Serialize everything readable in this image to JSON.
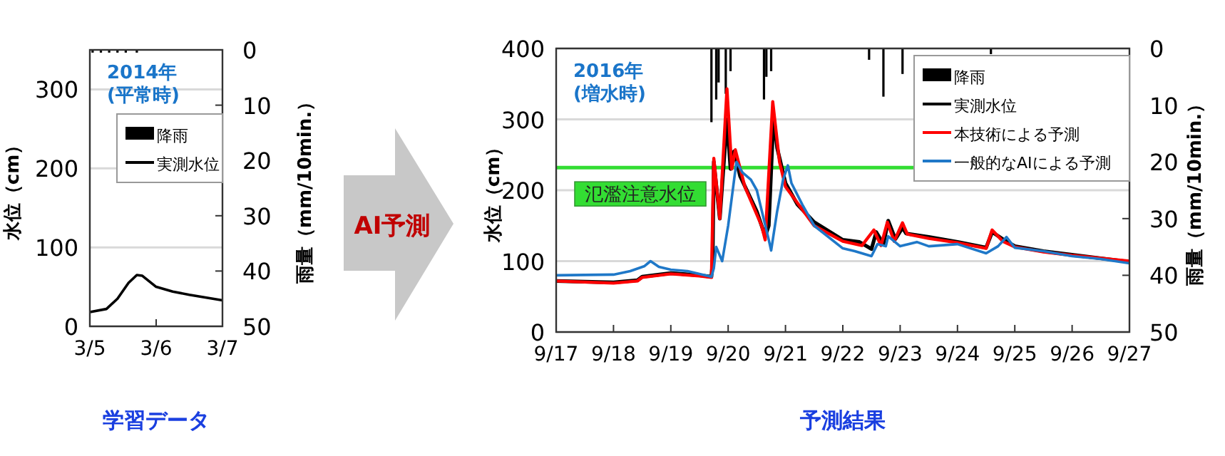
{
  "chart_data": [
    {
      "type": "line",
      "ylabel": "水位（cm）",
      "y2label": "雨量（mm/10min.）",
      "xlim": [
        "--03-05",
        "--03-07"
      ],
      "xticks": [
        {
          "value": "--03-05",
          "label": "3/5"
        },
        {
          "value": "--03-06",
          "label": "3/6"
        },
        {
          "value": "--03-07",
          "label": "3/7"
        }
      ],
      "ylim": [
        0,
        350
      ],
      "yticks": [
        0,
        100,
        200,
        300
      ],
      "y2lim": [
        50,
        0
      ],
      "y2ticks": [
        0,
        10,
        20,
        30,
        40,
        50
      ],
      "grid": "y",
      "legend": "top right",
      "annotations": [
        "2014年\n(平常時)",
        "学習データ"
      ],
      "series": [
        {
          "name": "降雨",
          "type": "bar",
          "axis": "y2",
          "color": "#000000",
          "x": [
            "--03-05T01:00",
            "--03-05T04:00",
            "--03-05T07:00",
            "--03-05T10:00",
            "--03-05T13:00",
            "--03-05T17:00"
          ],
          "values": [
            0.5,
            0.5,
            0.5,
            0.5,
            0.5,
            0.5
          ]
        },
        {
          "name": "実測水位",
          "type": "line",
          "color": "#000000",
          "x": [
            "--03-05T00:00",
            "--03-05T06:00",
            "--03-05T10:00",
            "--03-05T14:00",
            "--03-05T17:00",
            "--03-05T19:00",
            "--03-06T00:00",
            "--03-06T06:00",
            "--03-06T12:00",
            "--03-07T00:00"
          ],
          "values": [
            18,
            22,
            35,
            55,
            65,
            64,
            50,
            44,
            40,
            33
          ]
        }
      ]
    },
    {
      "type": "other",
      "annotations": [
        "AI予測"
      ]
    },
    {
      "type": "line",
      "ylabel": "水位（cm）",
      "y2label": "雨量（mm/10min.）",
      "xlim": [
        "--09-17",
        "--09-27"
      ],
      "xticks": [
        {
          "value": "--09-17",
          "label": "9/17"
        },
        {
          "value": "--09-18",
          "label": "9/18"
        },
        {
          "value": "--09-19",
          "label": "9/19"
        },
        {
          "value": "--09-20",
          "label": "9/20"
        },
        {
          "value": "--09-21",
          "label": "9/21"
        },
        {
          "value": "--09-22",
          "label": "9/22"
        },
        {
          "value": "--09-23",
          "label": "9/23"
        },
        {
          "value": "--09-24",
          "label": "9/24"
        },
        {
          "value": "--09-25",
          "label": "9/25"
        },
        {
          "value": "--09-26",
          "label": "9/26"
        },
        {
          "value": "--09-27",
          "label": "9/27"
        }
      ],
      "ylim": [
        0,
        400
      ],
      "yticks": [
        0,
        100,
        200,
        300,
        400
      ],
      "y2lim": [
        50,
        0
      ],
      "y2ticks": [
        0,
        10,
        20,
        30,
        40,
        50
      ],
      "grid": "y",
      "legend": "top right",
      "annotations": [
        "2016年\n(増水時)",
        "予測結果"
      ],
      "ref_lines": [
        {
          "axis": "y",
          "value": 232,
          "label": "氾濫注意水位",
          "color": "#33dd33"
        }
      ],
      "series": [
        {
          "name": "降雨",
          "type": "bar",
          "axis": "y2",
          "color": "#000000",
          "x": [
            "--09-19T17:00",
            "--09-19T19:00",
            "--09-19T20:00",
            "--09-19T23:00",
            "--09-20T01:00",
            "--09-20T15:00",
            "--09-20T16:00",
            "--09-20T18:00",
            "--09-22T11:00",
            "--09-22T17:00",
            "--09-23T01:00",
            "--09-24T14:00"
          ],
          "values": [
            13,
            9,
            6,
            8,
            4,
            9,
            5,
            4,
            2,
            8.5,
            4.5,
            1
          ]
        },
        {
          "name": "実測水位",
          "type": "line",
          "color": "#000000",
          "x": [
            "--09-17T00:00",
            "--09-18T00:00",
            "--09-18T10:00",
            "--09-18T12:00",
            "--09-19T00:00",
            "--09-19T12:00",
            "--09-19T17:00",
            "--09-19T17:30",
            "--09-19T18:00",
            "--09-19T20:30",
            "--09-19T23:30",
            "--09-20T01:00",
            "--09-20T02:30",
            "--09-20T05:00",
            "--09-20T12:00",
            "--09-20T15:30",
            "--09-20T17:00",
            "--09-20T19:00",
            "--09-20T20:30",
            "--09-21T00:00",
            "--09-21T05:00",
            "--09-21T12:00",
            "--09-22T00:00",
            "--09-22T07:00",
            "--09-22T12:00",
            "--09-22T14:00",
            "--09-22T17:00",
            "--09-22T19:00",
            "--09-22T22:00",
            "--09-23T01:00",
            "--09-23T02:30",
            "--09-23T12:00",
            "--09-24T00:00",
            "--09-24T12:00",
            "--09-24T14:30",
            "--09-24T19:00",
            "--09-25T00:00",
            "--09-25T12:00",
            "--09-26T00:00",
            "--09-26T12:00",
            "--09-27T00:00"
          ],
          "values": [
            72,
            70,
            73,
            78,
            83,
            80,
            78,
            100,
            240,
            160,
            300,
            230,
            255,
            220,
            170,
            135,
            150,
            305,
            260,
            210,
            180,
            155,
            130,
            127,
            117,
            141,
            124,
            157,
            131,
            147,
            139,
            134,
            127,
            119,
            141,
            131,
            121,
            114,
            109,
            104,
            99
          ]
        },
        {
          "name": "本技術による予測",
          "type": "line",
          "color": "#ff0000",
          "x": [
            "--09-17T00:00",
            "--09-18T00:00",
            "--09-18T10:00",
            "--09-18T12:00",
            "--09-19T00:00",
            "--09-19T12:00",
            "--09-19T17:00",
            "--09-19T18:00",
            "--09-19T20:30",
            "--09-19T23:30",
            "--09-20T01:30",
            "--09-20T03:00",
            "--09-20T07:00",
            "--09-20T14:00",
            "--09-20T15:30",
            "--09-20T18:40",
            "--09-20T21:30",
            "--09-21T00:00",
            "--09-21T12:00",
            "--09-22T00:00",
            "--09-22T08:00",
            "--09-22T13:00",
            "--09-22T16:00",
            "--09-22T18:40",
            "--09-22T21:30",
            "--09-23T01:00",
            "--09-23T03:00",
            "--09-23T12:00",
            "--09-24T00:00",
            "--09-24T12:00",
            "--09-24T14:30",
            "--09-24T19:00",
            "--09-25T00:00",
            "--09-25T12:00",
            "--09-26T00:00",
            "--09-26T12:00",
            "--09-27T00:00"
          ],
          "values": [
            72,
            69,
            72,
            77,
            82,
            79,
            77,
            245,
            160,
            343,
            230,
            257,
            205,
            150,
            130,
            325,
            240,
            205,
            150,
            128,
            122,
            144,
            122,
            155,
            128,
            154,
            138,
            132,
            126,
            118,
            144,
            128,
            120,
            113,
            108,
            104,
            100
          ]
        },
        {
          "name": "一般的なAIによる予測",
          "type": "line",
          "color": "#1f78c8",
          "x": [
            "--09-17T00:00",
            "--09-18T00:00",
            "--09-18T07:00",
            "--09-18T13:00",
            "--09-18T15:30",
            "--09-18T19:00",
            "--09-19T00:00",
            "--09-19T07:00",
            "--09-19T17:00",
            "--09-19T18:00",
            "--09-19T19:00",
            "--09-19T21:30",
            "--09-20T00:00",
            "--09-20T02:30",
            "--09-20T03:30",
            "--09-20T06:00",
            "--09-20T09:30",
            "--09-20T12:00",
            "--09-20T14:30",
            "--09-20T17:00",
            "--09-20T18:00",
            "--09-20T20:30",
            "--09-20T23:00",
            "--09-21T01:00",
            "--09-21T02:30",
            "--09-21T07:00",
            "--09-21T12:00",
            "--09-22T00:00",
            "--09-22T05:00",
            "--09-22T12:00",
            "--09-22T14:30",
            "--09-22T18:00",
            "--09-22T19:00",
            "--09-23T00:00",
            "--09-23T07:00",
            "--09-23T12:00",
            "--09-24T00:00",
            "--09-24T12:00",
            "--09-24T17:00",
            "--09-24T20:30",
            "--09-25T00:00",
            "--09-25T12:00",
            "--09-26T00:00",
            "--09-26T12:00",
            "--09-27T00:00"
          ],
          "values": [
            80,
            81,
            86,
            93,
            100,
            92,
            88,
            86,
            78,
            90,
            120,
            100,
            150,
            215,
            240,
            225,
            215,
            200,
            165,
            130,
            115,
            170,
            215,
            235,
            210,
            180,
            150,
            118,
            114,
            107,
            124,
            121,
            135,
            121,
            127,
            121,
            124,
            111,
            121,
            134,
            119,
            114,
            107,
            103,
            97
          ]
        }
      ]
    }
  ]
}
